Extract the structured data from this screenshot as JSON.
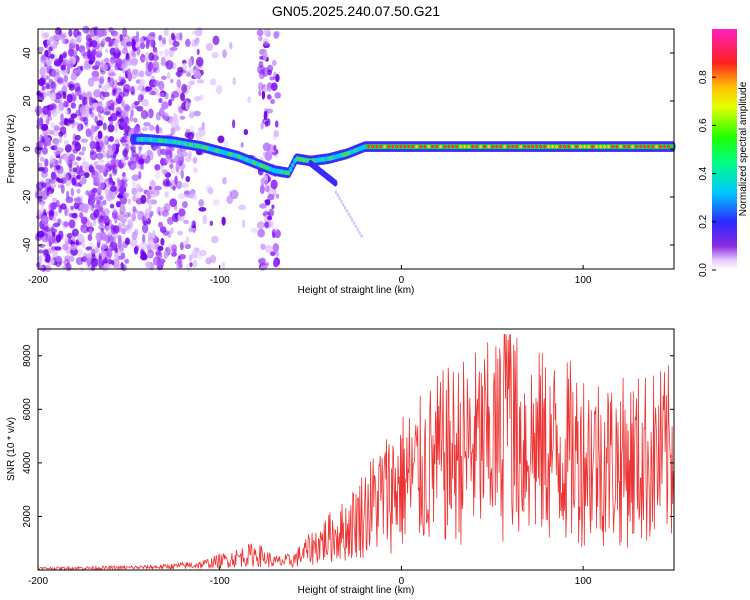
{
  "title": "GN05.2025.240.07.50.G21",
  "chart_data": [
    {
      "type": "heatmap",
      "xlabel": "Height of straight line (km)",
      "ylabel": "Frequency (Hz)",
      "xlim": [
        -200,
        150
      ],
      "ylim": [
        -50,
        50
      ],
      "xticks": [
        "-200",
        "-100",
        "0",
        "100"
      ],
      "yticks": [
        "-40",
        "-20",
        "0",
        "20",
        "40"
      ],
      "colorbar": {
        "label": "Normalized spectral amplitude",
        "range": [
          0,
          1
        ],
        "ticks": [
          "0.0",
          "0.2",
          "0.4",
          "0.6",
          "0.8"
        ]
      },
      "ridge": [
        {
          "x": -148,
          "y": 4
        },
        {
          "x": -140,
          "y": 4
        },
        {
          "x": -125,
          "y": 3
        },
        {
          "x": -110,
          "y": 1
        },
        {
          "x": -100,
          "y": -1
        },
        {
          "x": -90,
          "y": -3
        },
        {
          "x": -80,
          "y": -6
        },
        {
          "x": -70,
          "y": -9
        },
        {
          "x": -62,
          "y": -10
        },
        {
          "x": -58,
          "y": -4
        },
        {
          "x": -50,
          "y": -5
        },
        {
          "x": -40,
          "y": -4
        },
        {
          "x": -30,
          "y": -2
        },
        {
          "x": -20,
          "y": 1
        },
        {
          "x": 0,
          "y": 1
        },
        {
          "x": 50,
          "y": 1
        },
        {
          "x": 100,
          "y": 1
        },
        {
          "x": 150,
          "y": 1
        }
      ]
    },
    {
      "type": "line",
      "xlabel": "Height of straight line (km)",
      "ylabel": "SNR (10 * v/v)",
      "xlim": [
        -200,
        150
      ],
      "ylim": [
        0,
        9000
      ],
      "xticks": [
        "-200",
        "-100",
        "0",
        "100"
      ],
      "yticks": [
        "2000",
        "4000",
        "6000",
        "8000"
      ],
      "color": "#ee3333",
      "envelope": [
        {
          "x": -200,
          "y": 60
        },
        {
          "x": -150,
          "y": 90
        },
        {
          "x": -130,
          "y": 120
        },
        {
          "x": -110,
          "y": 200
        },
        {
          "x": -95,
          "y": 400
        },
        {
          "x": -80,
          "y": 600
        },
        {
          "x": -70,
          "y": 300
        },
        {
          "x": -60,
          "y": 350
        },
        {
          "x": -50,
          "y": 800
        },
        {
          "x": -40,
          "y": 1200
        },
        {
          "x": -30,
          "y": 1500
        },
        {
          "x": -20,
          "y": 2200
        },
        {
          "x": -10,
          "y": 2800
        },
        {
          "x": 0,
          "y": 3300
        },
        {
          "x": 10,
          "y": 3600
        },
        {
          "x": 20,
          "y": 4100
        },
        {
          "x": 40,
          "y": 4600
        },
        {
          "x": 60,
          "y": 5000
        },
        {
          "x": 80,
          "y": 4500
        },
        {
          "x": 100,
          "y": 4300
        },
        {
          "x": 120,
          "y": 4000
        },
        {
          "x": 150,
          "y": 4300
        }
      ]
    }
  ]
}
